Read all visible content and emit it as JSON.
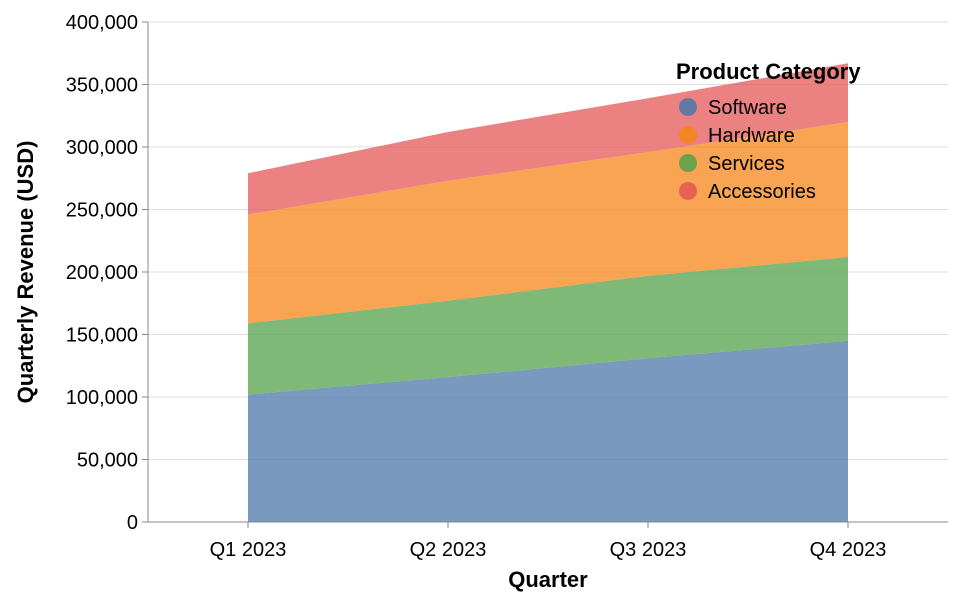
{
  "chart_data": {
    "type": "area",
    "stacked": true,
    "categories": [
      "Q1 2023",
      "Q2 2023",
      "Q3 2023",
      "Q4 2023"
    ],
    "series": [
      {
        "name": "Software",
        "values": [
          102000,
          116000,
          131000,
          145000
        ],
        "color": "#4c78a8"
      },
      {
        "name": "Services",
        "values": [
          57000,
          61000,
          66000,
          67000
        ],
        "color": "#54a24b"
      },
      {
        "name": "Hardware",
        "values": [
          87000,
          96000,
          99000,
          108000
        ],
        "color": "#f58518"
      },
      {
        "name": "Accessories",
        "values": [
          33000,
          39000,
          43000,
          47000
        ],
        "color": "#e45756"
      }
    ],
    "legend": {
      "title": "Product Category",
      "placement": "top-right",
      "entries": [
        {
          "label": "Software",
          "color": "#4c78a8"
        },
        {
          "label": "Hardware",
          "color": "#f58518"
        },
        {
          "label": "Services",
          "color": "#54a24b"
        },
        {
          "label": "Accessories",
          "color": "#e45756"
        }
      ]
    },
    "xlabel": "Quarter",
    "ylabel": "Quarterly Revenue (USD)",
    "ylim": [
      0,
      400000
    ],
    "yticks": [
      "0",
      "50,000",
      "100,000",
      "150,000",
      "200,000",
      "250,000",
      "300,000",
      "350,000",
      "400,000"
    ],
    "grid": true
  }
}
